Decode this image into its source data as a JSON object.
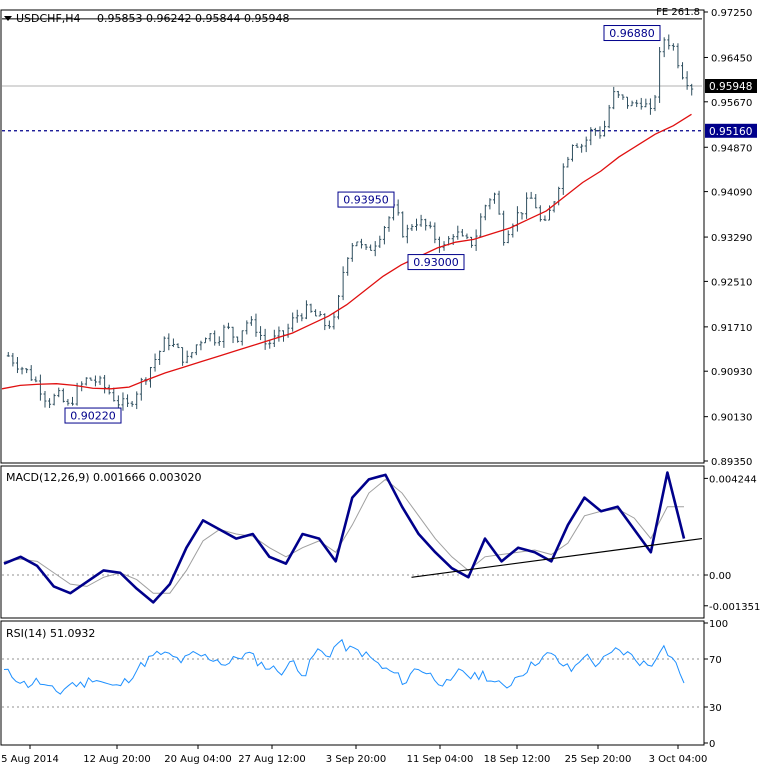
{
  "header": {
    "symbol_tf": "USDCHF,H4",
    "ohlc": "0.95853 0.96242 0.95844 0.95948"
  },
  "colors": {
    "candle": "#2f4f5f",
    "ma": "#e01010",
    "macd": "#00008b",
    "signal": "#a0a0a0",
    "rsi": "#1e90ff",
    "label_border": "#00008b",
    "label_bg": "#ffffff",
    "current_price_bg": "#000000",
    "support_bg": "#00008b",
    "support_line": "#00008b"
  },
  "chart_data": [
    {
      "type": "candlestick",
      "title": "USDCHF,H4",
      "ylim": [
        0.8935,
        0.9725
      ],
      "yticks": [
        "0.97250",
        "0.96450",
        "0.95670",
        "0.94870",
        "0.94090",
        "0.93290",
        "0.92510",
        "0.91710",
        "0.90930",
        "0.90130",
        "0.89350"
      ],
      "xticks": [
        "5 Aug 2014",
        "12 Aug 20:00",
        "20 Aug 04:00",
        "27 Aug 12:00",
        "3 Sep 20:00",
        "11 Sep 04:00",
        "18 Sep 12:00",
        "25 Sep 20:00",
        "3 Oct 04:00"
      ],
      "close_path": [
        0.912,
        0.9105,
        0.909,
        0.907,
        0.904,
        0.905,
        0.903,
        0.906,
        0.908,
        0.9075,
        0.906,
        0.904,
        0.903,
        0.906,
        0.909,
        0.912,
        0.915,
        0.913,
        0.911,
        0.914,
        0.916,
        0.915,
        0.917,
        0.915,
        0.918,
        0.917,
        0.914,
        0.915,
        0.916,
        0.919,
        0.92,
        0.919,
        0.9175,
        0.918,
        0.929,
        0.933,
        0.93,
        0.932,
        0.935,
        0.938,
        0.933,
        0.936,
        0.935,
        0.933,
        0.931,
        0.934,
        0.932,
        0.932,
        0.938,
        0.941,
        0.933,
        0.936,
        0.938,
        0.94,
        0.934,
        0.939,
        0.945,
        0.95,
        0.949,
        0.952,
        0.951,
        0.958,
        0.957,
        0.956,
        0.957,
        0.954,
        0.968,
        0.967,
        0.962,
        0.9595
      ],
      "ma_path": [
        0.9062,
        0.9068,
        0.907,
        0.9071,
        0.9068,
        0.9063,
        0.9062,
        0.9065,
        0.9078,
        0.909,
        0.91,
        0.911,
        0.912,
        0.913,
        0.914,
        0.915,
        0.916,
        0.9175,
        0.919,
        0.921,
        0.9235,
        0.926,
        0.928,
        0.9295,
        0.931,
        0.932,
        0.9325,
        0.9335,
        0.9345,
        0.936,
        0.9375,
        0.94,
        0.9425,
        0.9445,
        0.947,
        0.949,
        0.951,
        0.9525,
        0.9545
      ],
      "ma_x_start_fraction": 0.0,
      "ma_x_end_fraction": 0.985,
      "current_price": "0.95948",
      "support_price": "0.95160",
      "fe_label": "FE 261.8",
      "fe_level": 0.9713,
      "labels": [
        {
          "text": "0.90220",
          "price": 0.9022,
          "x_fraction": 0.13,
          "y_price": 0.9015
        },
        {
          "text": "0.93950",
          "price": 0.9395,
          "x_fraction": 0.52,
          "y_price": 0.9395
        },
        {
          "text": "0.93000",
          "price": 0.93,
          "x_fraction": 0.62,
          "y_price": 0.9285
        },
        {
          "text": "0.96880",
          "price": 0.9688,
          "x_fraction": 0.9,
          "y_price": 0.9688
        }
      ]
    },
    {
      "type": "line",
      "title": "MACD(12,26,9) 0.001666 0.003020",
      "ylim": [
        -0.0018,
        0.0047
      ],
      "yticks": [
        "0.004244",
        "0.00",
        "-0.001351"
      ],
      "series": [
        {
          "name": "MACD",
          "values": [
            0.0005,
            0.0008,
            0.0004,
            -0.0005,
            -0.0008,
            -0.0003,
            0.0002,
            0.0001,
            -0.0006,
            -0.0012,
            -0.0004,
            0.0012,
            0.0024,
            0.002,
            0.0016,
            0.0018,
            0.0008,
            0.0005,
            0.0018,
            0.0016,
            0.0006,
            0.0034,
            0.0042,
            0.0044,
            0.003,
            0.0018,
            0.001,
            0.0003,
            -0.0001,
            0.0016,
            0.0006,
            0.0012,
            0.001,
            0.0006,
            0.0022,
            0.0034,
            0.0028,
            0.003,
            0.002,
            0.001,
            0.0045,
            0.0016
          ]
        },
        {
          "name": "Signal",
          "values": [
            0.0006,
            0.0007,
            0.0006,
            0.0001,
            -0.0004,
            -0.0005,
            -0.0001,
            0.0001,
            -0.0002,
            -0.0008,
            -0.0008,
            0.0002,
            0.0015,
            0.002,
            0.0018,
            0.0017,
            0.0012,
            0.0008,
            0.0012,
            0.0015,
            0.001,
            0.0022,
            0.0036,
            0.0042,
            0.0036,
            0.0026,
            0.0016,
            0.0008,
            0.0002,
            0.0008,
            0.0009,
            0.001,
            0.0011,
            0.0009,
            0.0014,
            0.0026,
            0.0028,
            0.0029,
            0.0025,
            0.0016,
            0.003,
            0.003
          ]
        }
      ],
      "trendline": [
        [
          0.585,
          -0.0001
        ],
        [
          1.0,
          0.0016
        ]
      ]
    },
    {
      "type": "line",
      "title": "RSI(14) 51.0932",
      "ylim": [
        0,
        100
      ],
      "yticks": [
        "100",
        "70",
        "30",
        "0"
      ],
      "levels": [
        70,
        30
      ],
      "series": [
        {
          "name": "RSI",
          "values": [
            60,
            55,
            48,
            52,
            45,
            42,
            50,
            48,
            55,
            50,
            46,
            52,
            62,
            70,
            75,
            72,
            68,
            74,
            72,
            70,
            65,
            72,
            74,
            66,
            62,
            60,
            68,
            56,
            78,
            72,
            84,
            78,
            76,
            70,
            62,
            58,
            50,
            64,
            58,
            52,
            48,
            62,
            54,
            58,
            50,
            46,
            56,
            62,
            70,
            74,
            66,
            60,
            74,
            66,
            70,
            78,
            74,
            68,
            64,
            82,
            70,
            52
          ]
        }
      ]
    }
  ]
}
